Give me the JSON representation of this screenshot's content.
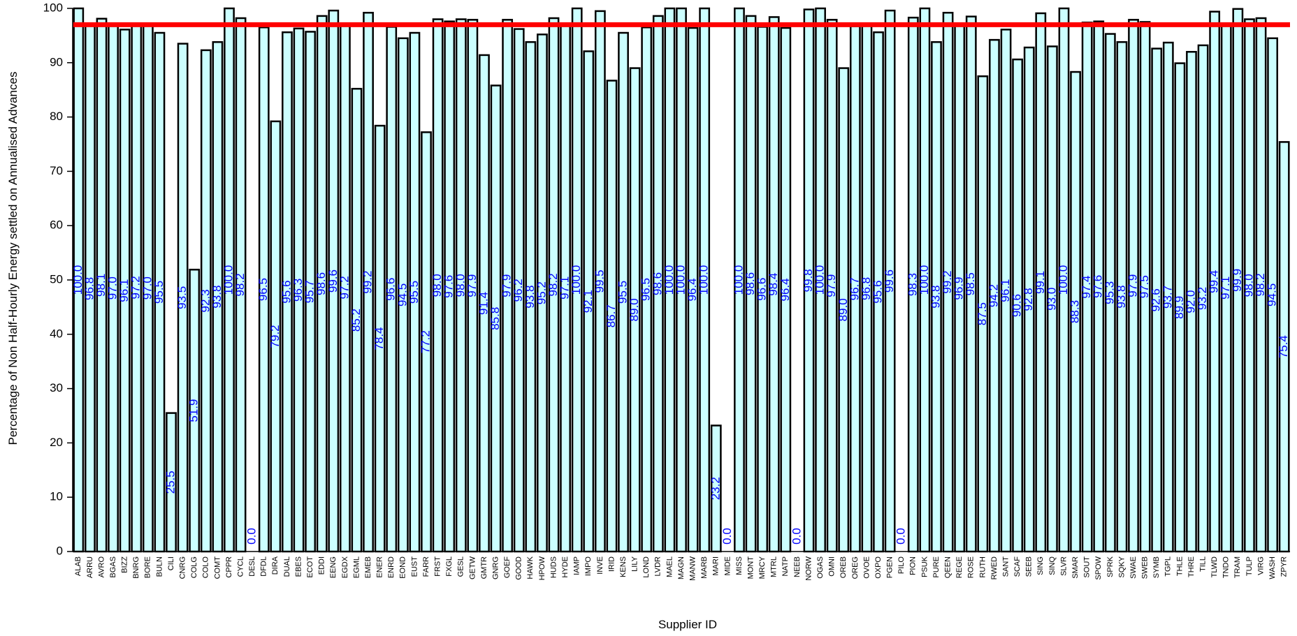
{
  "chart_data": {
    "type": "bar",
    "title": "",
    "xlabel": "Supplier ID",
    "ylabel": "Percentage of Non Half-Hourly Energy settled on Annualised Advances",
    "ylim": [
      0,
      100
    ],
    "yticks": [
      0,
      10,
      20,
      30,
      40,
      50,
      60,
      70,
      80,
      90,
      100
    ],
    "grid": false,
    "legend": "none",
    "reference_line": {
      "value": 97,
      "color": "#ff0000"
    },
    "colors": {
      "bar_fill": "#ccffff",
      "bar_stroke": "#000000",
      "data_label": "#0000ff",
      "reference_line": "#ff0000"
    },
    "categories": [
      "ALAB",
      "ARRU",
      "AVRO",
      "BGAS",
      "BIZZ",
      "BNRG",
      "BORE",
      "BULN",
      "CILI",
      "CNRG",
      "COLG",
      "COLO",
      "COMT",
      "CPPR",
      "CYCL",
      "DESL",
      "DFDL",
      "DIRA",
      "DUAL",
      "EBES",
      "ECOT",
      "EDDI",
      "EENG",
      "EGDX",
      "EGML",
      "EMEB",
      "ENER",
      "ENRD",
      "EOND",
      "EUST",
      "FARR",
      "FRST",
      "FXGL",
      "GESL",
      "GETW",
      "GMTR",
      "GNRG",
      "GOEF",
      "GOOD",
      "HAWK",
      "HPOW",
      "HUDS",
      "HYDE",
      "IAMP",
      "IMPO",
      "INVE",
      "IRID",
      "KENS",
      "LILY",
      "LOND",
      "LVDR",
      "MAEL",
      "MAGN",
      "MANW",
      "MARB",
      "MARI",
      "MIDE",
      "MISS",
      "MONT",
      "MRCY",
      "MTRL",
      "NATP",
      "NEEB",
      "NORW",
      "OGAS",
      "OMNI",
      "OREB",
      "OREG",
      "OVOE",
      "OXPO",
      "PGEN",
      "PILO",
      "PION",
      "PSUK",
      "PURE",
      "QEEN",
      "REGE",
      "ROSE",
      "RUTH",
      "RWED",
      "SANT",
      "SCAF",
      "SEEB",
      "SING",
      "SINQ",
      "SLVR",
      "SMAR",
      "SOUT",
      "SPOW",
      "SPRK",
      "SQKY",
      "SWAE",
      "SWEB",
      "SYMB",
      "TGPL",
      "THLE",
      "THRE",
      "TILL",
      "TLWD",
      "TNDO",
      "TRAM",
      "TULP",
      "VIRG",
      "WASH",
      "ZPYR"
    ],
    "values": [
      100.0,
      96.8,
      98.1,
      97.0,
      96.1,
      97.2,
      97.0,
      95.5,
      25.5,
      93.5,
      51.9,
      92.3,
      93.8,
      100.0,
      98.2,
      0.0,
      96.5,
      79.2,
      95.6,
      96.3,
      95.7,
      98.6,
      99.6,
      97.2,
      85.2,
      99.2,
      78.4,
      96.6,
      94.5,
      95.5,
      77.2,
      98.0,
      97.6,
      98.0,
      97.9,
      91.4,
      85.8,
      97.9,
      96.2,
      93.8,
      95.2,
      98.2,
      97.1,
      100.0,
      92.1,
      99.5,
      86.7,
      95.5,
      89.0,
      96.5,
      98.6,
      100.0,
      100.0,
      96.4,
      100.0,
      23.2,
      0.0,
      100.0,
      98.6,
      96.6,
      98.4,
      96.4,
      0.0,
      99.8,
      100.0,
      97.9,
      89.0,
      96.7,
      96.8,
      95.6,
      99.6,
      0.0,
      98.3,
      100.0,
      93.8,
      99.2,
      96.9,
      98.5,
      87.5,
      94.2,
      96.1,
      90.6,
      92.8,
      99.1,
      93.0,
      100.0,
      88.3,
      97.4,
      97.6,
      95.3,
      93.8,
      97.9,
      97.5,
      92.6,
      93.7,
      89.9,
      92.0,
      93.2,
      99.4,
      97.1,
      99.9,
      98.0,
      98.2,
      94.5,
      75.4
    ],
    "data_labels": [
      "100.0",
      "96.8",
      "98.1",
      "97.0",
      "96.1",
      "97.2",
      "97.0",
      "95.5",
      "25.5",
      "93.5",
      "51.9",
      "92.3",
      "93.8",
      "100.0",
      "98.2",
      "0.0",
      "96.5",
      "79.2",
      "95.6",
      "96.3",
      "95.7",
      "98.6",
      "99.6",
      "97.2",
      "85.2",
      "99.2",
      "78.4",
      "96.6",
      "94.5",
      "95.5",
      "77.2",
      "98.0",
      "97.6",
      "98.0",
      "97.9",
      "91.4",
      "85.8",
      "97.9",
      "96.2",
      "93.8",
      "95.2",
      "98.2",
      "97.1",
      "100.0",
      "92.1",
      "99.5",
      "86.7",
      "95.5",
      "89.0",
      "96.5",
      "98.6",
      "100.0",
      "100.0",
      "96.4",
      "100.0",
      "23.2",
      "0.0",
      "100.0",
      "98.6",
      "96.6",
      "98.4",
      "96.4",
      "0.0",
      "99.8",
      "100.0",
      "97.9",
      "89.0",
      "96.7",
      "96.8",
      "95.6",
      "99.6",
      "0.0",
      "98.3",
      "100.0",
      "93.8",
      "99.2",
      "96.9",
      "98.5",
      "87.5",
      "94.2",
      "96.1",
      "90.6",
      "92.8",
      "99.1",
      "93.0",
      "100.0",
      "88.3",
      "97.4",
      "97.6",
      "95.3",
      "93.8",
      "97.9",
      "97.5",
      "92.6",
      "93.7",
      "89.9",
      "92.0",
      "93.2",
      "99.4",
      "97.1",
      "99.9",
      "98.0",
      "98.2",
      "94.5",
      "75.4"
    ]
  }
}
